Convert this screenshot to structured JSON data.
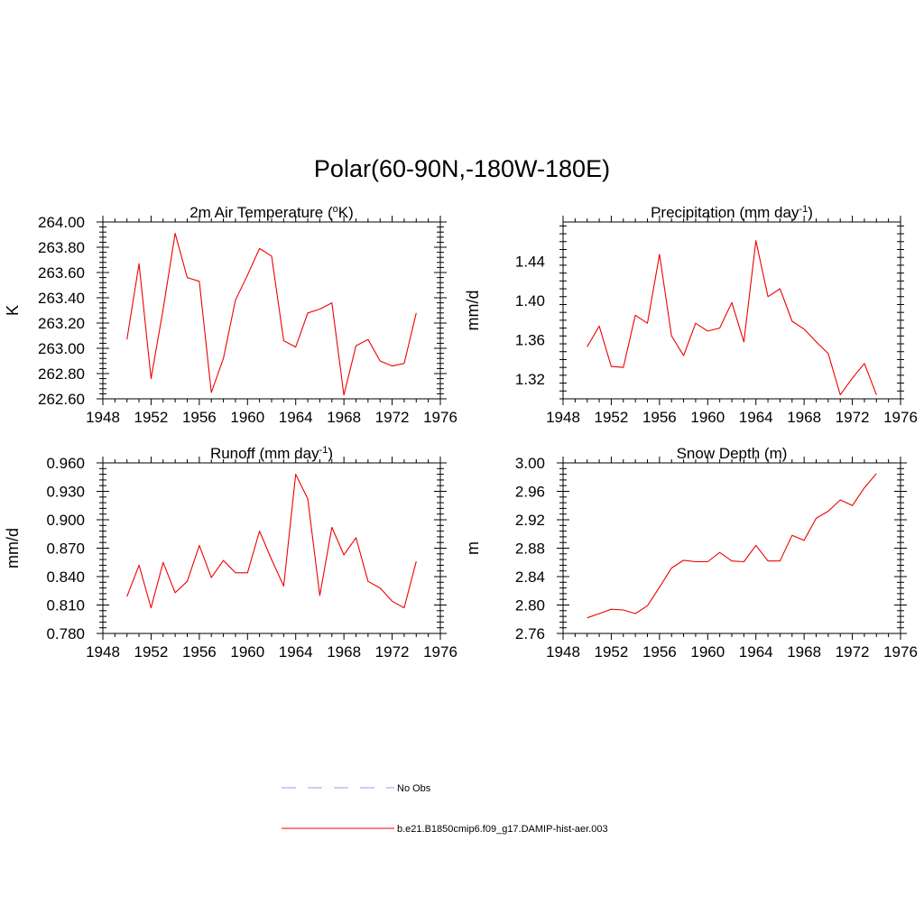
{
  "title": "Polar(60-90N,-180W-180E)",
  "colors": {
    "model_line": "#ee0000",
    "obs_line": "#9999ee",
    "axis": "#000000"
  },
  "legend": [
    {
      "label": "No Obs",
      "style": "dashed",
      "color": "#9999ee"
    },
    {
      "label": "b.e21.B1850cmip6.f09_g17.DAMIP-hist-aer.003",
      "style": "solid",
      "color": "#ee0000"
    }
  ],
  "chart_data": [
    {
      "type": "line",
      "title": "2m Air Temperature (",
      "title_sup": "o",
      "title_post": "K)",
      "title_sup2": "",
      "title_post2": "",
      "ylabel": "K",
      "xlim": [
        1948,
        1976
      ],
      "ylim": [
        262.6,
        264.0
      ],
      "xticks": [
        1948,
        1952,
        1956,
        1960,
        1964,
        1968,
        1972,
        1976
      ],
      "yticks": [
        "262.60",
        "262.80",
        "263.00",
        "263.20",
        "263.40",
        "263.60",
        "263.80",
        "264.00"
      ],
      "x": [
        1950,
        1951,
        1952,
        1953,
        1954,
        1955,
        1956,
        1957,
        1958,
        1959,
        1960,
        1961,
        1962,
        1963,
        1964,
        1965,
        1966,
        1967,
        1968,
        1969,
        1970,
        1971,
        1972,
        1973,
        1974
      ],
      "series": [
        {
          "name": "b.e21.B1850cmip6.f09_g17.DAMIP-hist-aer.003",
          "values": [
            263.07,
            263.67,
            262.76,
            263.31,
            263.91,
            263.56,
            263.53,
            262.65,
            262.92,
            263.38,
            263.58,
            263.79,
            263.73,
            263.06,
            263.01,
            263.28,
            263.31,
            263.36,
            262.63,
            263.02,
            263.07,
            262.9,
            262.86,
            262.88,
            263.28
          ]
        }
      ]
    },
    {
      "type": "line",
      "title": "Precipitation (mm day",
      "title_sup": "-1",
      "title_post": ")",
      "ylabel": "mm/d",
      "xlim": [
        1948,
        1976
      ],
      "ylim": [
        1.3,
        1.48
      ],
      "xticks": [
        1948,
        1952,
        1956,
        1960,
        1964,
        1968,
        1972,
        1976
      ],
      "yticks": [
        "1.32",
        "1.36",
        "1.40",
        "1.44"
      ],
      "x": [
        1950,
        1951,
        1952,
        1953,
        1954,
        1955,
        1956,
        1957,
        1958,
        1959,
        1960,
        1961,
        1962,
        1963,
        1964,
        1965,
        1966,
        1967,
        1968,
        1969,
        1970,
        1971,
        1972,
        1973,
        1974
      ],
      "series": [
        {
          "name": "b.e21.B1850cmip6.f09_g17.DAMIP-hist-aer.003",
          "values": [
            1.353,
            1.374,
            1.333,
            1.332,
            1.385,
            1.377,
            1.447,
            1.364,
            1.344,
            1.377,
            1.369,
            1.372,
            1.398,
            1.358,
            1.461,
            1.404,
            1.412,
            1.379,
            1.371,
            1.358,
            1.346,
            1.304,
            1.321,
            1.336,
            1.304
          ]
        }
      ]
    },
    {
      "type": "line",
      "title": "Runoff (mm day",
      "title_sup": "-1",
      "title_post": ")",
      "ylabel": "mm/d",
      "xlim": [
        1948,
        1976
      ],
      "ylim": [
        0.78,
        0.96
      ],
      "xticks": [
        1948,
        1952,
        1956,
        1960,
        1964,
        1968,
        1972,
        1976
      ],
      "yticks": [
        "0.780",
        "0.810",
        "0.840",
        "0.870",
        "0.900",
        "0.930",
        "0.960"
      ],
      "x": [
        1950,
        1951,
        1952,
        1953,
        1954,
        1955,
        1956,
        1957,
        1958,
        1959,
        1960,
        1961,
        1962,
        1963,
        1964,
        1965,
        1966,
        1967,
        1968,
        1969,
        1970,
        1971,
        1972,
        1973,
        1974
      ],
      "series": [
        {
          "name": "b.e21.B1850cmip6.f09_g17.DAMIP-hist-aer.003",
          "values": [
            0.819,
            0.852,
            0.807,
            0.855,
            0.823,
            0.835,
            0.873,
            0.839,
            0.857,
            0.844,
            0.844,
            0.888,
            0.858,
            0.83,
            0.948,
            0.922,
            0.82,
            0.892,
            0.863,
            0.881,
            0.835,
            0.828,
            0.814,
            0.807,
            0.856
          ]
        }
      ]
    },
    {
      "type": "line",
      "title": "Snow Depth (m)",
      "title_sup": "",
      "title_post": "",
      "ylabel": "m",
      "xlim": [
        1948,
        1976
      ],
      "ylim": [
        2.76,
        3.0
      ],
      "xticks": [
        1948,
        1952,
        1956,
        1960,
        1964,
        1968,
        1972,
        1976
      ],
      "yticks": [
        "2.76",
        "2.80",
        "2.84",
        "2.88",
        "2.92",
        "2.96",
        "3.00"
      ],
      "x": [
        1950,
        1951,
        1952,
        1953,
        1954,
        1955,
        1956,
        1957,
        1958,
        1959,
        1960,
        1961,
        1962,
        1963,
        1964,
        1965,
        1966,
        1967,
        1968,
        1969,
        1970,
        1971,
        1972,
        1973,
        1974
      ],
      "series": [
        {
          "name": "b.e21.B1850cmip6.f09_g17.DAMIP-hist-aer.003",
          "values": [
            2.782,
            2.788,
            2.794,
            2.793,
            2.788,
            2.799,
            2.825,
            2.852,
            2.863,
            2.861,
            2.861,
            2.874,
            2.862,
            2.861,
            2.884,
            2.862,
            2.862,
            2.898,
            2.891,
            2.922,
            2.932,
            2.948,
            2.94,
            2.965,
            2.985
          ]
        }
      ]
    }
  ]
}
